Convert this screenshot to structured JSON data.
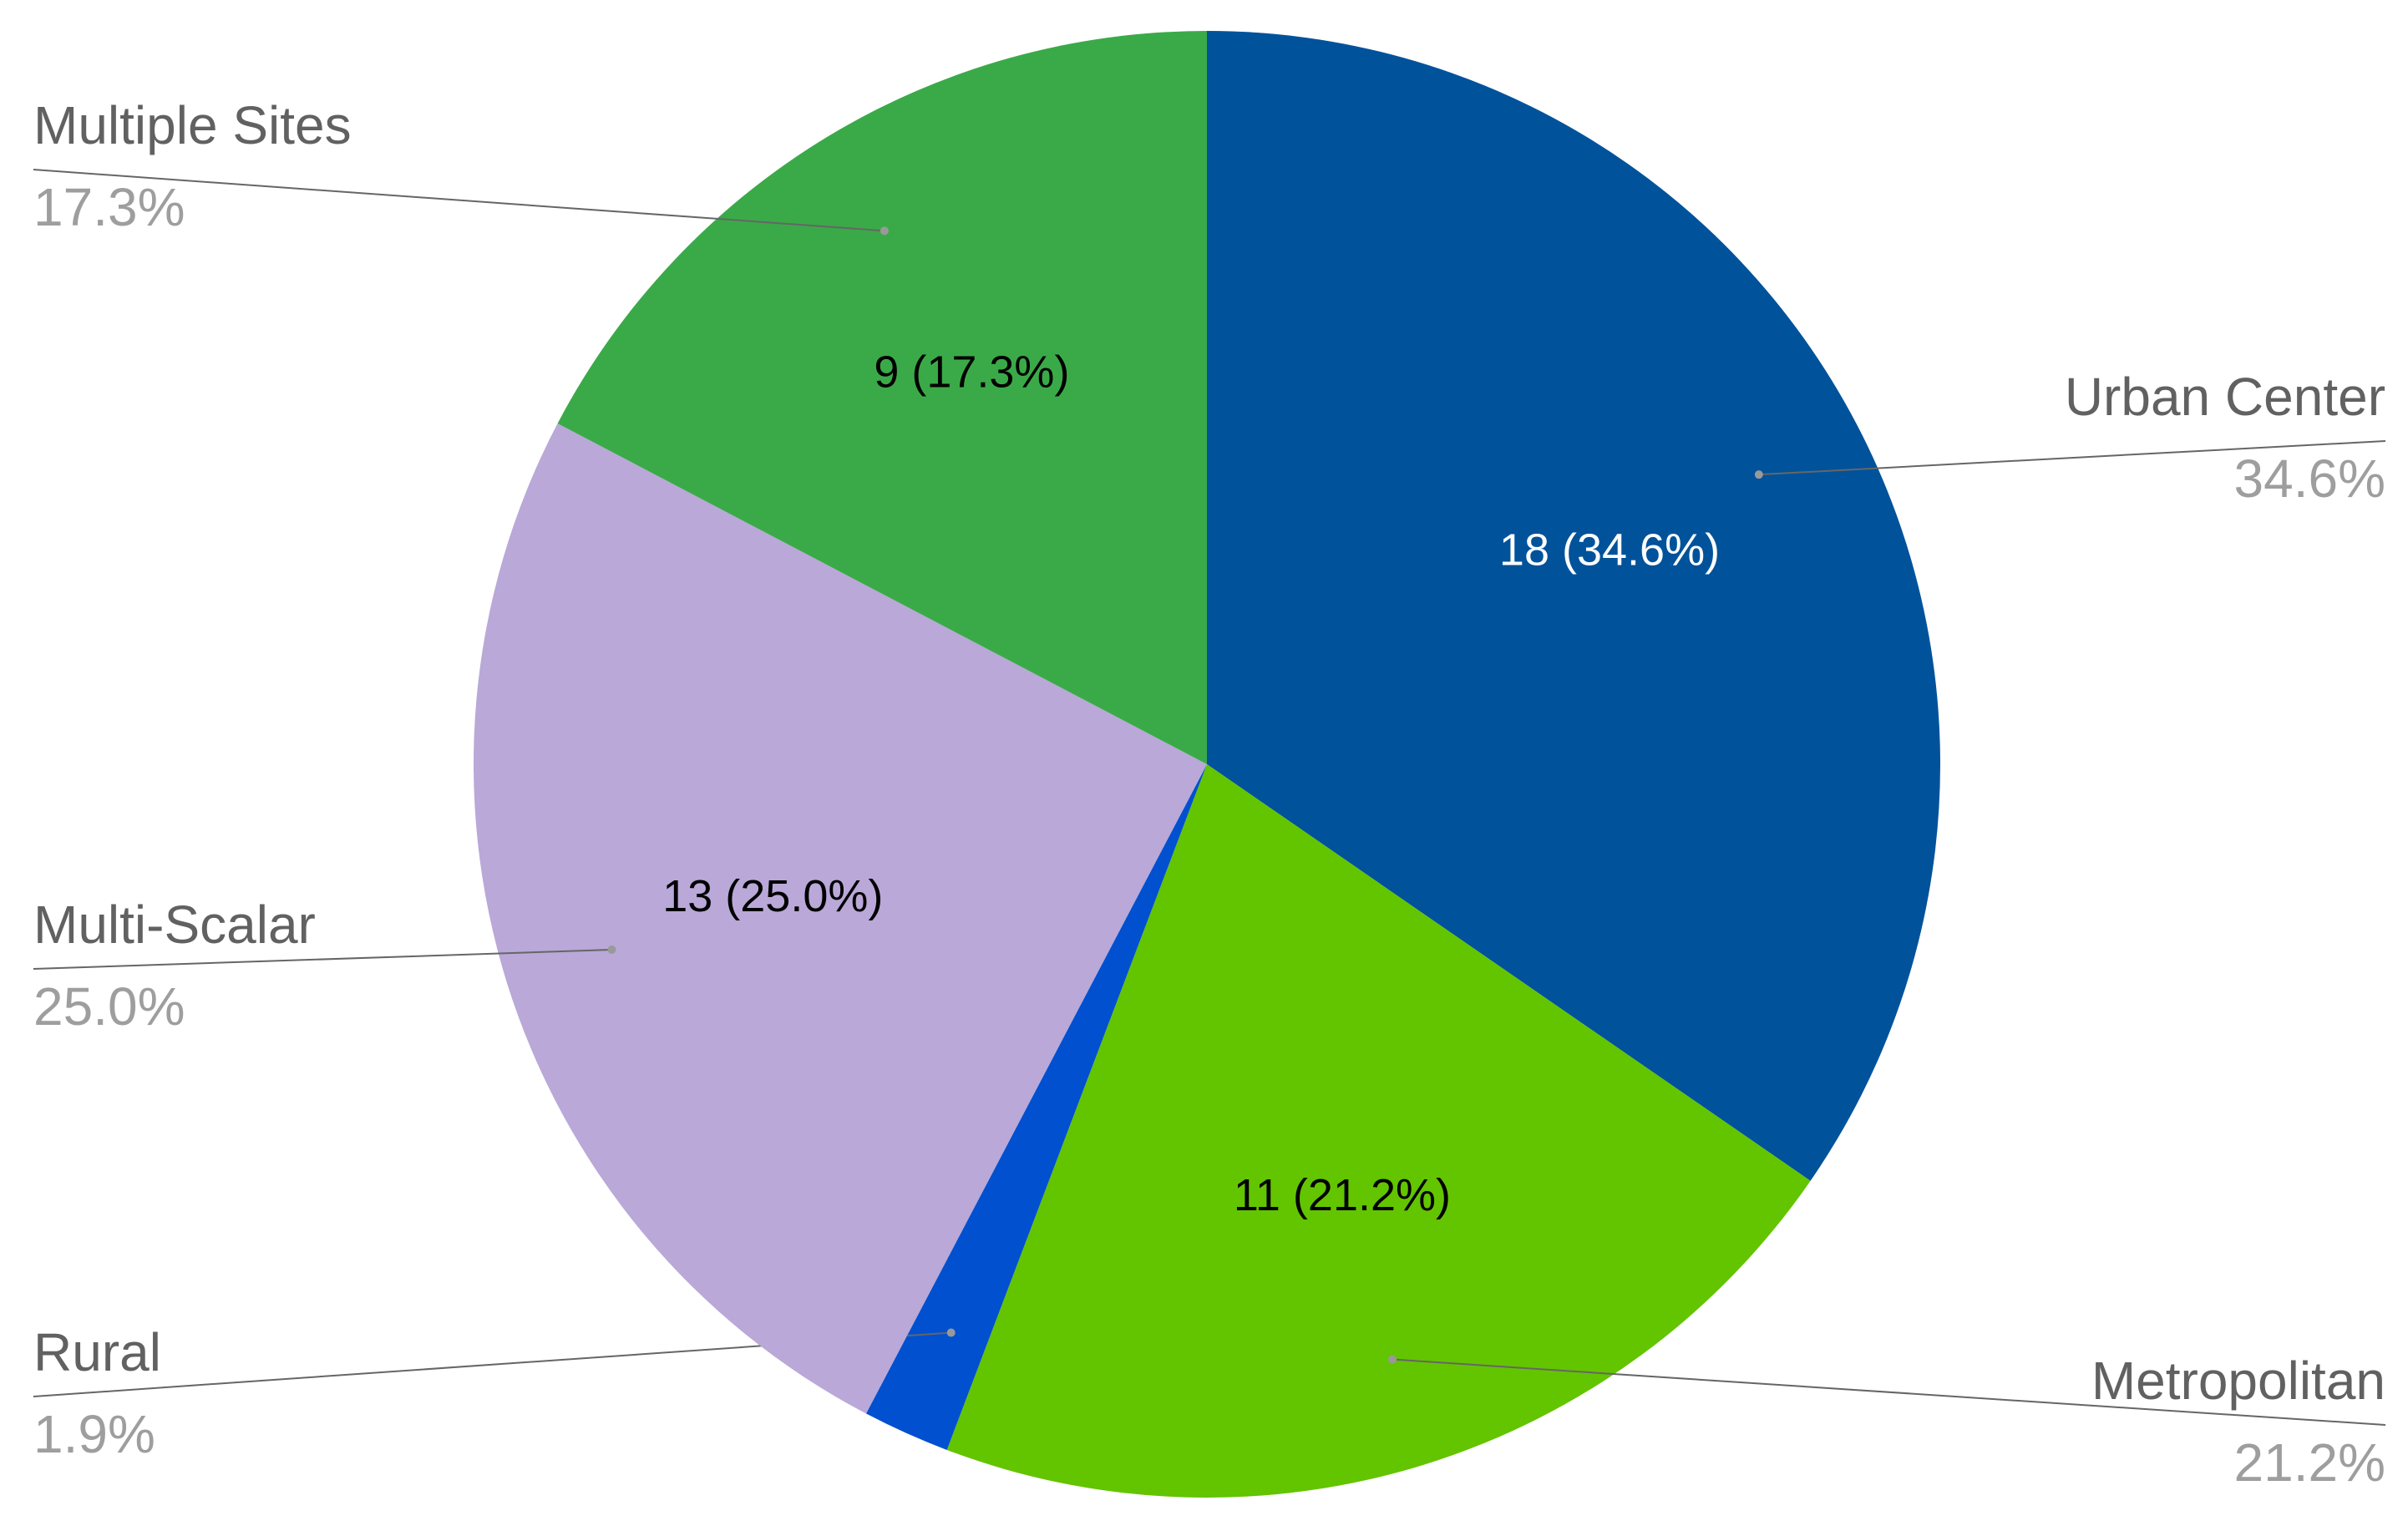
{
  "chart_data": {
    "type": "pie",
    "categories": [
      "Urban Center",
      "Metropolitan",
      "Rural",
      "Multi-Scalar",
      "Multiple Sites"
    ],
    "values": [
      18,
      11,
      1,
      13,
      9
    ],
    "value_labels": [
      "18 (34.6%)",
      "11 (21.2%)",
      null,
      "13 (25.0%)",
      "9 (17.3%)"
    ],
    "percent_labels": [
      "34.6%",
      "21.2%",
      "1.9%",
      "25.0%",
      "17.3%"
    ],
    "colors": [
      "#00529b",
      "#63c400",
      "#0050d0",
      "#b9a8d8",
      "#3aaa48"
    ],
    "label_text_colors": [
      "#ffffff",
      "#000000",
      "#000000",
      "#000000",
      "#000000"
    ]
  }
}
